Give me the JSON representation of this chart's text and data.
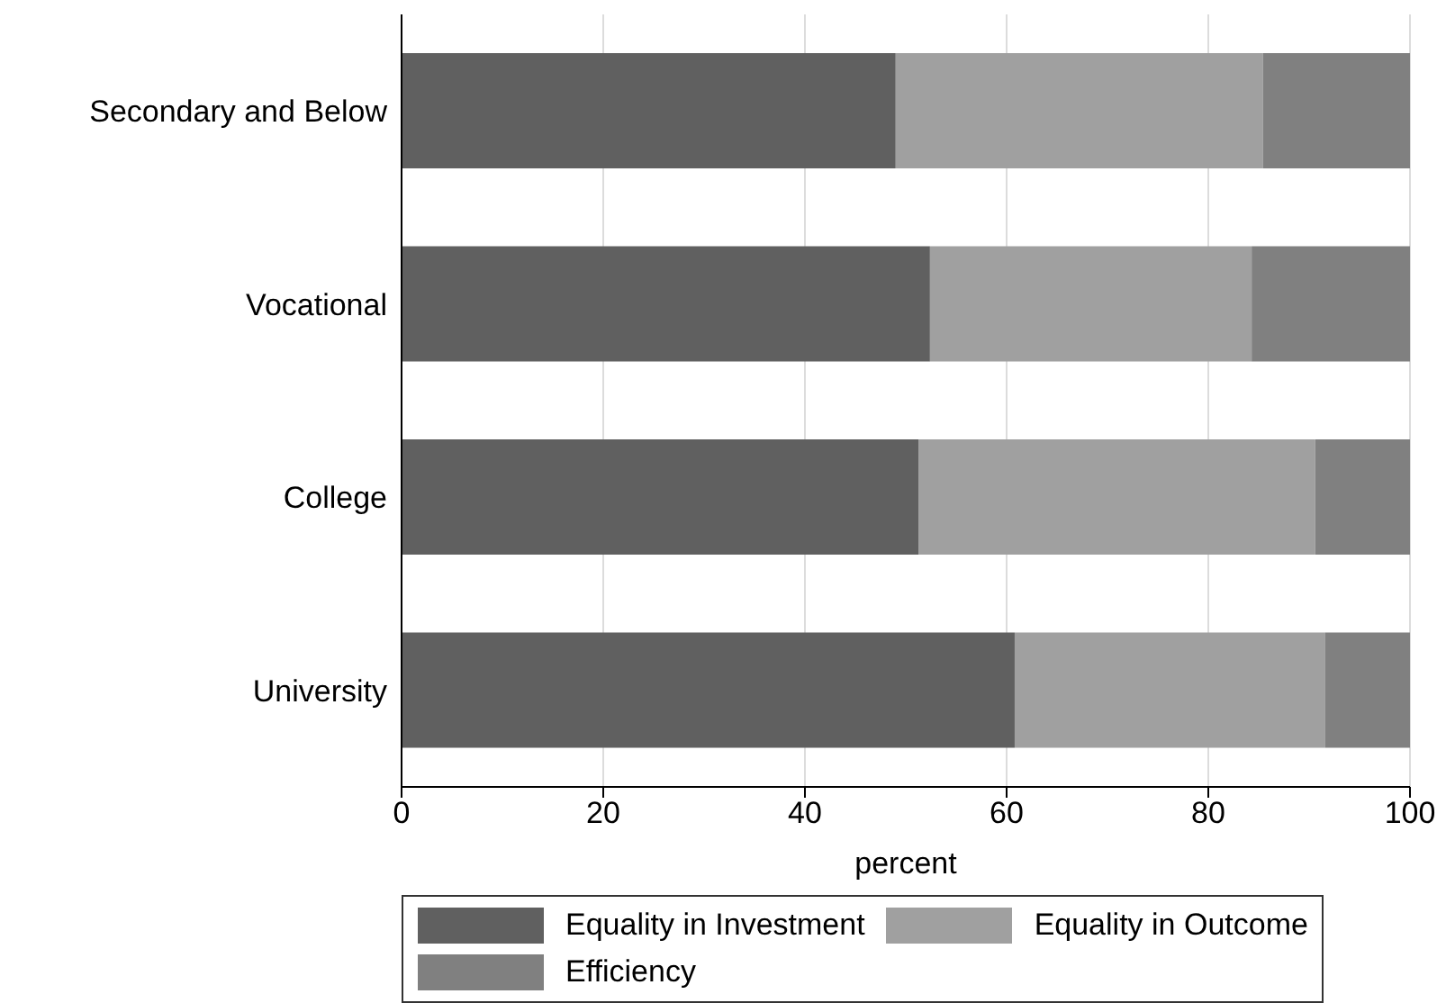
{
  "chart_data": {
    "type": "bar",
    "orientation": "horizontal",
    "stacked": true,
    "xlabel": "percent",
    "categories": [
      "Secondary and Below",
      "Vocational",
      "College",
      "University"
    ],
    "series": [
      {
        "name": "Equality in Investment",
        "color": "#606060",
        "values": [
          49,
          52.4,
          51.3,
          60.8
        ]
      },
      {
        "name": "Equality in Outcome",
        "color": "#a0a0a0",
        "values": [
          36.4,
          31.9,
          39.3,
          30.8
        ]
      },
      {
        "name": "Efficiency",
        "color": "#808080",
        "values": [
          14.6,
          15.7,
          9.4,
          8.4
        ]
      }
    ],
    "xlim": [
      0,
      100
    ],
    "xticks": [
      0,
      20,
      40,
      60,
      80,
      100
    ],
    "grid": "x",
    "legend": "bottom"
  }
}
